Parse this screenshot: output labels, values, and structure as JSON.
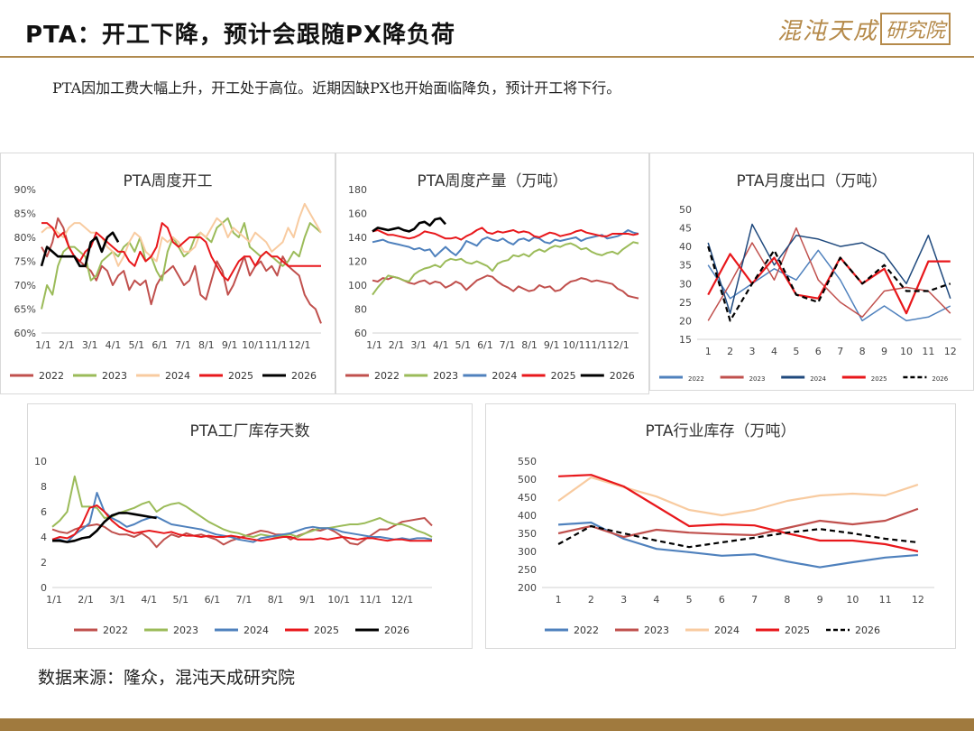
{
  "header": {
    "title": "PTA：开工下降，预计会跟随PX降负荷",
    "subtitle": "PTA因加工费大幅上升，开工处于高位。近期因缺PX也开始面临降负，预计开工将下行。",
    "logo_text": "混沌天成",
    "logo_box_text": "研究院"
  },
  "footer": {
    "source": "数据来源：隆众，混沌天成研究院"
  },
  "colors": {
    "2022": "#c0504d",
    "2023": "#9bbb59",
    "2024": "#4f81bd",
    "2024b": "#f8cba0",
    "2025": "#e8171b",
    "2026": "#000000"
  },
  "chart_data": [
    {
      "id": "operating_rate",
      "type": "line",
      "title": "PTA周度开工",
      "y_tick_labels": [
        "60%",
        "65%",
        "70%",
        "75%",
        "80%",
        "85%",
        "90%"
      ],
      "ylim": [
        60,
        90
      ],
      "x_tick_labels": [
        "1/1",
        "2/1",
        "3/1",
        "4/1",
        "5/1",
        "6/1",
        "7/1",
        "8/1",
        "9/1",
        "10/1",
        "11/1",
        "12/1"
      ],
      "x_count": 52,
      "series": [
        {
          "name": "2022",
          "color": "#c0504d",
          "values": [
            78,
            76,
            79,
            84,
            82,
            78,
            76,
            75,
            74,
            73,
            71,
            74,
            73,
            70,
            72,
            73,
            69,
            71,
            70,
            71,
            66,
            70,
            72,
            73,
            74,
            72,
            70,
            71,
            74,
            68,
            67,
            71,
            75,
            73,
            68,
            70,
            73,
            76,
            72,
            74,
            75,
            73,
            74,
            72,
            76,
            74,
            73,
            72,
            68,
            66,
            65,
            62
          ]
        },
        {
          "name": "2023",
          "color": "#9bbb59",
          "values": [
            65,
            70,
            68,
            74,
            77,
            78,
            78,
            77,
            76,
            71,
            72,
            75,
            76,
            77,
            76,
            78,
            79,
            77,
            80,
            75,
            76,
            73,
            71,
            77,
            80,
            78,
            76,
            77,
            80,
            81,
            80,
            79,
            82,
            83,
            84,
            81,
            80,
            83,
            78,
            77,
            76,
            77,
            76,
            75,
            74,
            75,
            77,
            76,
            80,
            83,
            82,
            81
          ]
        },
        {
          "name": "2024",
          "color": "#f8cba0",
          "values": [
            81,
            82,
            82,
            81,
            80,
            82,
            83,
            83,
            82,
            81,
            81,
            80,
            78,
            77,
            74,
            76,
            79,
            81,
            80,
            77,
            76,
            75,
            80,
            79,
            80,
            79,
            77,
            77,
            78,
            81,
            80,
            82,
            84,
            83,
            80,
            82,
            81,
            80,
            79,
            81,
            80,
            79,
            77,
            78,
            79,
            82,
            80,
            84,
            87,
            85,
            83,
            81
          ]
        },
        {
          "name": "2025",
          "color": "#e8171b",
          "values": [
            83,
            83,
            82,
            80,
            81,
            78,
            76,
            75,
            77,
            78,
            81,
            80,
            79,
            78,
            77,
            77,
            75,
            74,
            77,
            75,
            76,
            78,
            83,
            82,
            79,
            78,
            79,
            80,
            80,
            80,
            79,
            76,
            74,
            72,
            71,
            73,
            75,
            76,
            76,
            74,
            76,
            77,
            76,
            76,
            75,
            74,
            74,
            74,
            74,
            74,
            74,
            74
          ]
        },
        {
          "name": "2026",
          "color": "#000000",
          "values": [
            74,
            78,
            77,
            76,
            76,
            76,
            76,
            74,
            74,
            79,
            80,
            77,
            80,
            81,
            79
          ]
        }
      ]
    },
    {
      "id": "weekly_output",
      "type": "line",
      "title": "PTA周度产量（万吨）",
      "y_tick_labels": [
        "60",
        "80",
        "100",
        "120",
        "140",
        "160",
        "180"
      ],
      "ylim": [
        60,
        180
      ],
      "x_tick_labels": [
        "1/1",
        "2/1",
        "3/1",
        "4/1",
        "5/1",
        "6/1",
        "7/1",
        "8/1",
        "9/1",
        "10/1",
        "11/1",
        "12/1"
      ],
      "x_count": 52,
      "series": [
        {
          "name": "2022",
          "color": "#c0504d",
          "values": [
            104,
            103,
            106,
            105,
            107,
            106,
            104,
            102,
            101,
            103,
            104,
            101,
            103,
            102,
            98,
            100,
            103,
            101,
            96,
            100,
            104,
            106,
            108,
            107,
            103,
            100,
            98,
            95,
            99,
            97,
            95,
            96,
            100,
            98,
            99,
            95,
            96,
            100,
            103,
            104,
            106,
            105,
            103,
            104,
            103,
            102,
            101,
            97,
            95,
            91,
            90,
            89
          ]
        },
        {
          "name": "2023",
          "color": "#9bbb59",
          "values": [
            92,
            98,
            103,
            108,
            107,
            106,
            104,
            103,
            109,
            112,
            114,
            115,
            117,
            115,
            120,
            122,
            121,
            122,
            119,
            118,
            120,
            118,
            116,
            112,
            118,
            120,
            121,
            125,
            124,
            126,
            124,
            128,
            130,
            128,
            131,
            133,
            132,
            134,
            135,
            133,
            130,
            131,
            128,
            126,
            125,
            127,
            128,
            126,
            130,
            133,
            136,
            135
          ]
        },
        {
          "name": "2024",
          "color": "#4f81bd",
          "values": [
            136,
            137,
            138,
            136,
            135,
            134,
            133,
            132,
            130,
            131,
            129,
            130,
            124,
            128,
            132,
            128,
            125,
            130,
            137,
            135,
            133,
            138,
            140,
            138,
            137,
            139,
            136,
            134,
            138,
            139,
            137,
            140,
            139,
            136,
            135,
            138,
            137,
            138,
            139,
            140,
            137,
            139,
            140,
            141,
            142,
            139,
            140,
            141,
            143,
            146,
            144,
            143
          ]
        },
        {
          "name": "2025",
          "color": "#e8171b",
          "values": [
            145,
            146,
            144,
            142,
            142,
            141,
            140,
            139,
            140,
            142,
            145,
            144,
            143,
            141,
            139,
            139,
            140,
            138,
            141,
            143,
            146,
            148,
            144,
            143,
            145,
            144,
            145,
            146,
            144,
            145,
            144,
            141,
            140,
            142,
            144,
            143,
            141,
            142,
            143,
            145,
            146,
            144,
            143,
            142,
            141,
            141,
            143,
            143,
            143,
            143,
            142,
            143
          ]
        },
        {
          "name": "2026",
          "color": "#000000",
          "values": [
            145,
            148,
            147,
            146,
            147,
            148,
            146,
            145,
            147,
            152,
            153,
            150,
            155,
            156,
            151
          ]
        }
      ]
    },
    {
      "id": "monthly_export",
      "type": "line",
      "title": "PTA月度出口（万吨）",
      "y_tick_labels": [
        "15",
        "20",
        "25",
        "30",
        "35",
        "40",
        "45",
        "50"
      ],
      "ylim": [
        15,
        50
      ],
      "x_tick_labels": [
        "1",
        "2",
        "3",
        "4",
        "5",
        "6",
        "7",
        "8",
        "9",
        "10",
        "11",
        "12"
      ],
      "x_count": 12,
      "series": [
        {
          "name": "2022",
          "color": "#4f81bd",
          "values": [
            35,
            26,
            30,
            34,
            31,
            39,
            31,
            20,
            24,
            20,
            21,
            24
          ],
          "width": 1.5
        },
        {
          "name": "2023",
          "color": "#c0504d",
          "values": [
            20,
            30,
            41,
            31,
            45,
            31,
            25,
            21,
            28,
            29,
            28,
            22
          ],
          "width": 1.5
        },
        {
          "name": "2024",
          "color": "#1f497d",
          "values": [
            41,
            22,
            46,
            35,
            43,
            42,
            40,
            41,
            38,
            30,
            43,
            26
          ],
          "width": 1.5
        },
        {
          "name": "2025",
          "color": "#e8171b",
          "values": [
            27,
            38,
            30,
            37,
            27,
            26,
            37,
            30,
            34,
            22,
            36,
            36
          ],
          "width": 2.2
        },
        {
          "name": "2026",
          "color": "#000000",
          "values": [
            40,
            20,
            30,
            39,
            27,
            25,
            37,
            30,
            35,
            28,
            28,
            30
          ],
          "dashed": true,
          "width": 2.2
        }
      ]
    },
    {
      "id": "factory_inventory_days",
      "type": "line",
      "title": "PTA工厂库存天数",
      "y_tick_labels": [
        "0",
        "2",
        "4",
        "6",
        "8",
        "10"
      ],
      "ylim": [
        0,
        10
      ],
      "x_tick_labels": [
        "1/1",
        "2/1",
        "3/1",
        "4/1",
        "5/1",
        "6/1",
        "7/1",
        "8/1",
        "9/1",
        "10/1",
        "11/1",
        "12/1"
      ],
      "x_count": 52,
      "series": [
        {
          "name": "2022",
          "color": "#c0504d",
          "values": [
            4.6,
            4.4,
            4.3,
            4.6,
            4.8,
            4.9,
            5.0,
            4.8,
            4.4,
            4.2,
            4.2,
            4.0,
            4.3,
            3.9,
            3.2,
            3.8,
            4.2,
            4.0,
            4.3,
            4.1,
            4.2,
            4.0,
            3.8,
            3.4,
            3.7,
            3.9,
            4.1,
            4.3,
            4.5,
            4.4,
            4.2,
            4.2,
            3.8,
            4.1,
            4.3,
            4.6,
            4.5,
            4.7,
            4.4,
            4.0,
            3.5,
            3.4,
            3.8,
            4.2,
            4.6,
            4.6,
            4.9,
            5.2,
            5.3,
            5.4,
            5.5,
            4.9
          ]
        },
        {
          "name": "2023",
          "color": "#9bbb59",
          "values": [
            4.8,
            5.3,
            6.0,
            8.8,
            6.4,
            6.4,
            6.3,
            5.5,
            5.6,
            5.9,
            6.1,
            6.3,
            6.6,
            6.8,
            6.0,
            6.4,
            6.6,
            6.7,
            6.4,
            6.0,
            5.6,
            5.2,
            4.9,
            4.6,
            4.4,
            4.3,
            4.1,
            4.0,
            4.2,
            4.1,
            4.0,
            4.1,
            4.2,
            4.0,
            4.3,
            4.5,
            4.7,
            4.7,
            4.8,
            4.9,
            5.0,
            5.0,
            5.1,
            5.3,
            5.5,
            5.2,
            5.0,
            5.0,
            4.8,
            4.5,
            4.3,
            4.0
          ]
        },
        {
          "name": "2024",
          "color": "#4f81bd",
          "values": [
            3.8,
            3.8,
            3.6,
            4.2,
            4.6,
            5.1,
            7.5,
            6.0,
            5.5,
            5.2,
            4.8,
            5.0,
            5.3,
            5.5,
            5.6,
            5.3,
            5.0,
            4.9,
            4.8,
            4.7,
            4.6,
            4.4,
            4.2,
            4.1,
            4.0,
            3.8,
            3.7,
            3.6,
            3.9,
            4.0,
            4.1,
            4.2,
            4.3,
            4.5,
            4.7,
            4.8,
            4.7,
            4.7,
            4.6,
            4.4,
            4.3,
            4.2,
            4.1,
            4.0,
            4.0,
            3.9,
            3.8,
            3.9,
            3.8,
            3.9,
            3.9,
            3.8
          ]
        },
        {
          "name": "2025",
          "color": "#e8171b",
          "values": [
            3.8,
            4.0,
            3.9,
            4.2,
            5.0,
            6.3,
            6.5,
            6.0,
            5.3,
            4.8,
            4.5,
            4.3,
            4.4,
            4.5,
            4.4,
            4.3,
            4.4,
            4.2,
            4.1,
            4.1,
            4.0,
            4.1,
            4.0,
            4.0,
            4.1,
            4.0,
            3.9,
            3.8,
            3.7,
            3.8,
            3.9,
            4.0,
            4.0,
            3.8,
            3.8,
            3.8,
            3.9,
            3.8,
            3.9,
            4.0,
            3.9,
            3.8,
            3.9,
            3.9,
            3.8,
            3.7,
            3.8,
            3.8,
            3.7,
            3.7,
            3.7,
            3.7
          ]
        },
        {
          "name": "2026",
          "color": "#000000",
          "values": [
            3.7,
            3.7,
            3.6,
            3.7,
            3.9,
            4.0,
            4.5,
            5.2,
            5.7,
            5.9,
            5.9,
            5.8,
            5.7,
            5.6,
            5.5
          ]
        }
      ]
    },
    {
      "id": "industry_inventory",
      "type": "line",
      "title": "PTA行业库存（万吨）",
      "y_tick_labels": [
        "200",
        "250",
        "300",
        "350",
        "400",
        "450",
        "500",
        "550"
      ],
      "ylim": [
        200,
        550
      ],
      "x_tick_labels": [
        "1",
        "2",
        "3",
        "4",
        "5",
        "6",
        "7",
        "8",
        "9",
        "10",
        "11",
        "12"
      ],
      "x_count": 12,
      "series": [
        {
          "name": "2022",
          "color": "#4f81bd",
          "values": [
            374,
            380,
            335,
            307,
            298,
            288,
            292,
            272,
            256,
            270,
            283,
            290
          ],
          "width": 2.2
        },
        {
          "name": "2023",
          "color": "#c0504d",
          "values": [
            350,
            370,
            340,
            360,
            352,
            348,
            345,
            365,
            385,
            375,
            385,
            418
          ],
          "width": 2.2
        },
        {
          "name": "2024",
          "color": "#f8cba0",
          "values": [
            440,
            505,
            478,
            452,
            415,
            400,
            415,
            440,
            455,
            460,
            455,
            485
          ],
          "width": 2.2
        },
        {
          "name": "2025",
          "color": "#e8171b",
          "values": [
            508,
            512,
            480,
            425,
            370,
            375,
            372,
            350,
            330,
            330,
            320,
            300
          ],
          "width": 2.2
        },
        {
          "name": "2026",
          "color": "#000000",
          "values": [
            320,
            370,
            350,
            330,
            312,
            325,
            338,
            352,
            362,
            350,
            335,
            325
          ],
          "dashed": true,
          "width": 2.2
        }
      ]
    }
  ]
}
